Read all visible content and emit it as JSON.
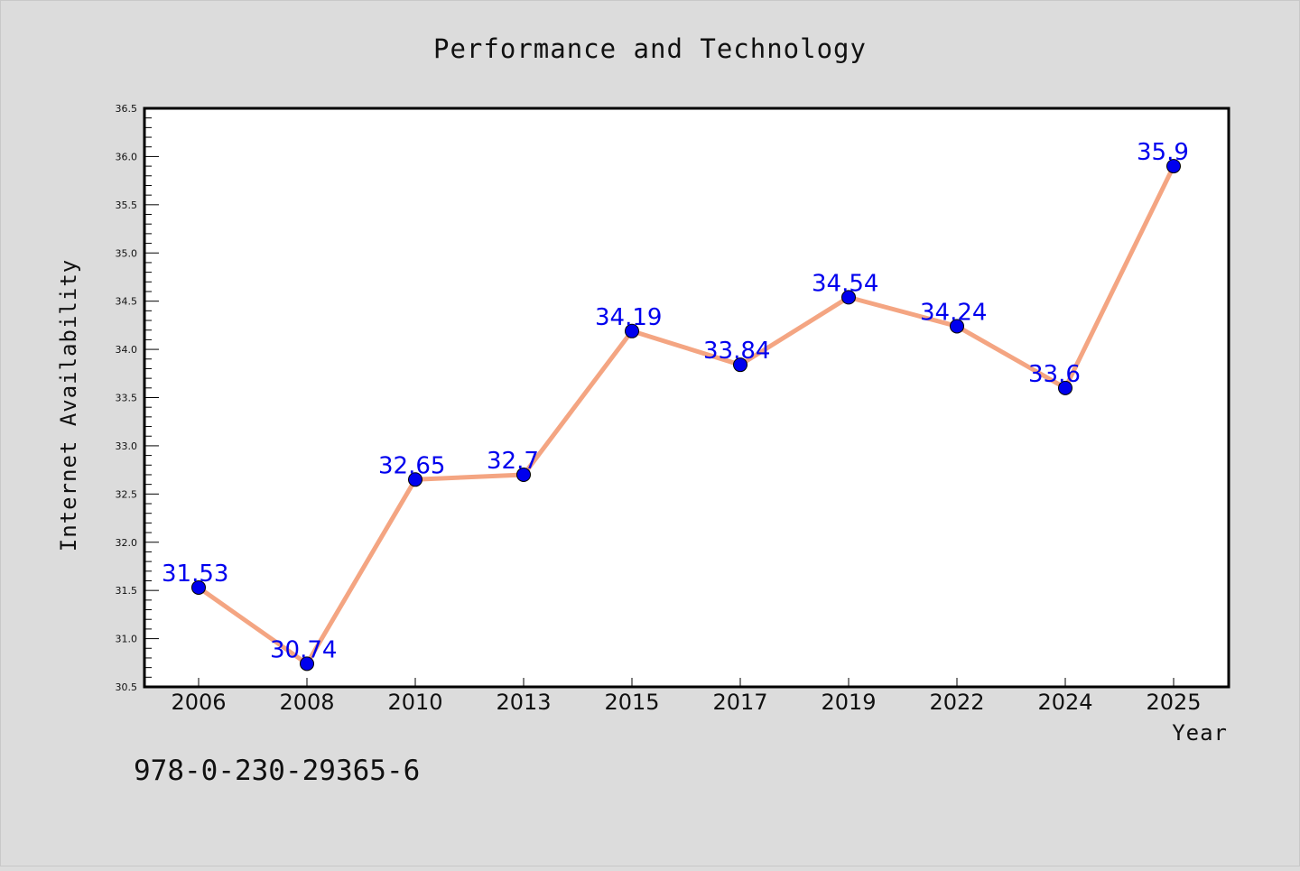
{
  "chart_data": {
    "type": "line",
    "title": "Performance and Technology",
    "xlabel": "Year",
    "ylabel": "Internet Availability",
    "categories": [
      "2006",
      "2008",
      "2010",
      "2013",
      "2015",
      "2017",
      "2019",
      "2022",
      "2024",
      "2025"
    ],
    "values": [
      31.53,
      30.74,
      32.65,
      32.7,
      34.19,
      33.84,
      34.54,
      34.24,
      33.6,
      35.9
    ],
    "value_labels": [
      "31.53",
      "30.74",
      "32.65",
      "32.7",
      "34.19",
      "33.84",
      "34.54",
      "34.24",
      "33.6",
      "35.9"
    ],
    "ylim": [
      30.5,
      36.5
    ],
    "yticks": [
      "30.5",
      "31.0",
      "31.5",
      "32.0",
      "32.5",
      "33.0",
      "33.5",
      "34.0",
      "34.5",
      "35.0",
      "35.5",
      "36.0",
      "36.5"
    ],
    "grid": false,
    "line_color": "#f4a582",
    "marker_color": "#0000ee",
    "label_color": "#0000ee",
    "plot_background": "#ffffff",
    "figure_background": "#dcdcdc"
  },
  "footer": {
    "isbn": "978-0-230-29365-6"
  }
}
